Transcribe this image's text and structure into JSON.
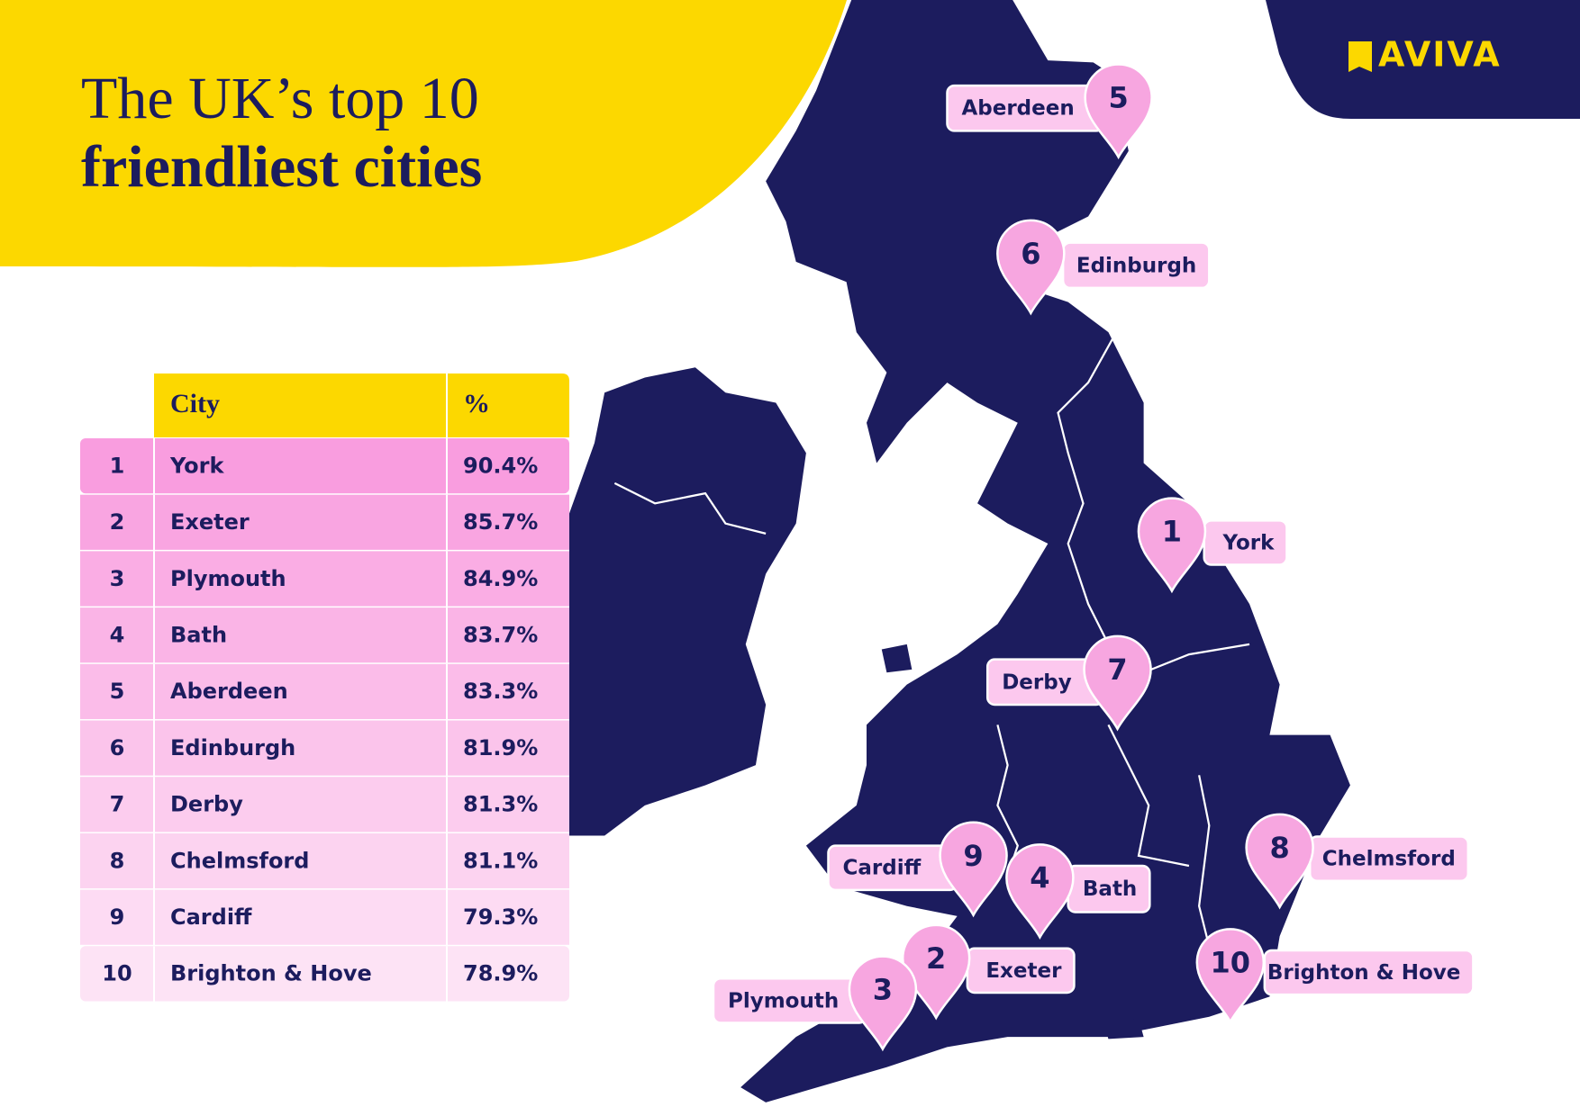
{
  "brand": "AVIVA",
  "header": {
    "title_line1": "The UK’s top 10",
    "title_line2": "friendliest cities"
  },
  "table": {
    "columns": [
      "City",
      "%"
    ],
    "rows": [
      [
        "1",
        "York",
        "90.4%"
      ],
      [
        "2",
        "Exeter",
        "85.7%"
      ],
      [
        "3",
        "Plymouth",
        "84.9%"
      ],
      [
        "4",
        "Bath",
        "83.7%"
      ],
      [
        "5",
        "Aberdeen",
        "83.3%"
      ],
      [
        "6",
        "Edinburgh",
        "81.9%"
      ],
      [
        "7",
        "Derby",
        "81.3%"
      ],
      [
        "8",
        "Chelmsford",
        "81.1%"
      ],
      [
        "9",
        "Cardiff",
        "79.3%"
      ],
      [
        "10",
        "Brighton & Hove",
        "78.9%"
      ]
    ]
  }
}
